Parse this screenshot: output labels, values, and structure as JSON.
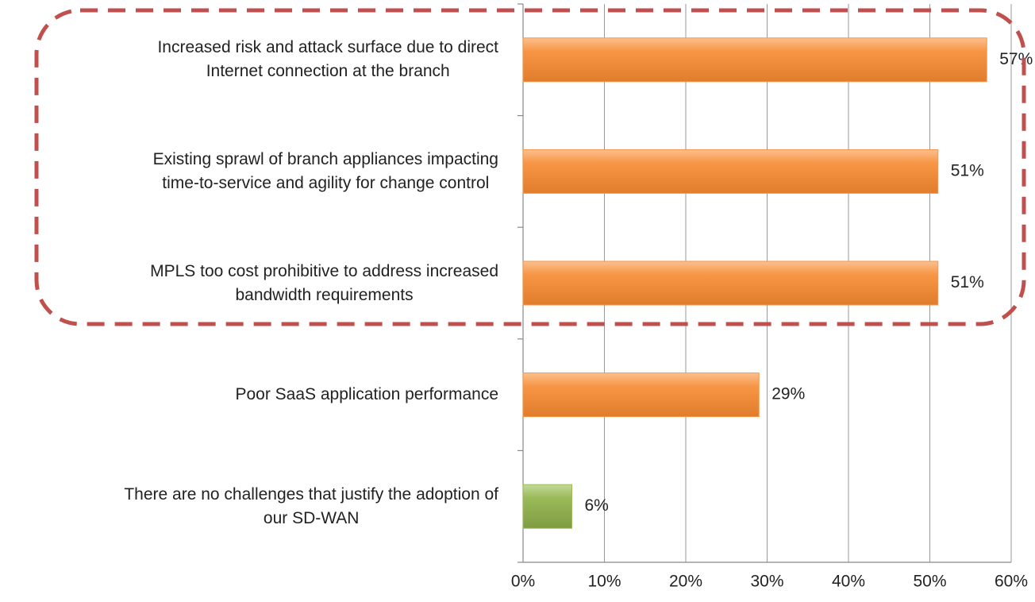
{
  "chart_data": {
    "type": "bar",
    "orientation": "horizontal",
    "categories": [
      "Increased risk and attack surface due to direct\nInternet connection at the branch",
      "Existing sprawl of branch appliances impacting\ntime-to-service and agility for change control",
      "MPLS too cost prohibitive to address increased\nbandwidth requirements",
      "Poor SaaS application performance",
      "There are no challenges that justify the adoption of\nour SD-WAN"
    ],
    "values": [
      57,
      51,
      51,
      29,
      6
    ],
    "value_labels": [
      "57%",
      "51%",
      "51%",
      "29%",
      "6%"
    ],
    "colors": [
      "#f79646",
      "#f79646",
      "#f79646",
      "#f79646",
      "#9bbb59"
    ],
    "xlim": [
      0,
      60
    ],
    "xticks": [
      {
        "value": 0,
        "label": "0%"
      },
      {
        "value": 10,
        "label": "10%"
      },
      {
        "value": 20,
        "label": "20%"
      },
      {
        "value": 30,
        "label": "30%"
      },
      {
        "value": 40,
        "label": "40%"
      },
      {
        "value": 50,
        "label": "50%"
      },
      {
        "value": 60,
        "label": "60%"
      }
    ],
    "grid": true
  }
}
